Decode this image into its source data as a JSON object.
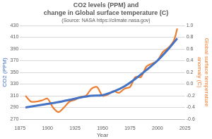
{
  "chart_data": {
    "type": "line",
    "title": [
      "CO2 levels (PPM) and",
      "change in Global surface temperature (C)"
    ],
    "subtitle": "(Source: NASA https://climate.nasa.gov)",
    "x_label": "Year",
    "y_label": "CO2 (PPM)",
    "y2_label": [
      "Global surface temperature",
      "anomaly (C)"
    ],
    "xlim": [
      1875,
      2025
    ],
    "xticks": [
      1875,
      1900,
      1925,
      1950,
      1975,
      2000,
      2025
    ],
    "ylim": [
      270,
      430
    ],
    "yticks": [
      270,
      290,
      310,
      330,
      350,
      370,
      390,
      410,
      430
    ],
    "y2lim": [
      -0.6,
      1.0
    ],
    "y2ticks": [
      -0.6,
      -0.4,
      -0.2,
      {
        "value": 0,
        "label": "0.0"
      },
      0.2,
      0.4,
      0.6,
      0.8,
      {
        "value": 1,
        "label": "1.0"
      }
    ],
    "grid": true,
    "series": [
      {
        "color": "#4472c4",
        "axis": "y",
        "x": [
          1880,
          1890,
          1900,
          1910,
          1920,
          1930,
          1940,
          1950,
          1960,
          1970,
          1980,
          1990,
          2000,
          2010,
          2018
        ],
        "values": [
          290,
          293,
          296,
          299,
          303,
          307,
          310,
          311,
          317,
          326,
          339,
          354,
          370,
          390,
          408
        ]
      },
      {
        "color": "#ed7d31",
        "axis": "y2",
        "x": [
          1880,
          1885,
          1890,
          1895,
          1900,
          1905,
          1910,
          1915,
          1920,
          1925,
          1930,
          1935,
          1940,
          1945,
          1950,
          1955,
          1960,
          1965,
          1970,
          1975,
          1980,
          1985,
          1990,
          1995,
          2000,
          2005,
          2010,
          2015,
          2018
        ],
        "values": [
          -0.2,
          -0.3,
          -0.3,
          -0.28,
          -0.25,
          -0.4,
          -0.48,
          -0.4,
          -0.3,
          -0.27,
          -0.22,
          -0.2,
          -0.08,
          -0.05,
          -0.2,
          -0.18,
          -0.12,
          -0.15,
          -0.08,
          -0.05,
          0.12,
          0.12,
          0.3,
          0.35,
          0.4,
          0.55,
          0.62,
          0.75,
          0.95
        ]
      }
    ]
  }
}
